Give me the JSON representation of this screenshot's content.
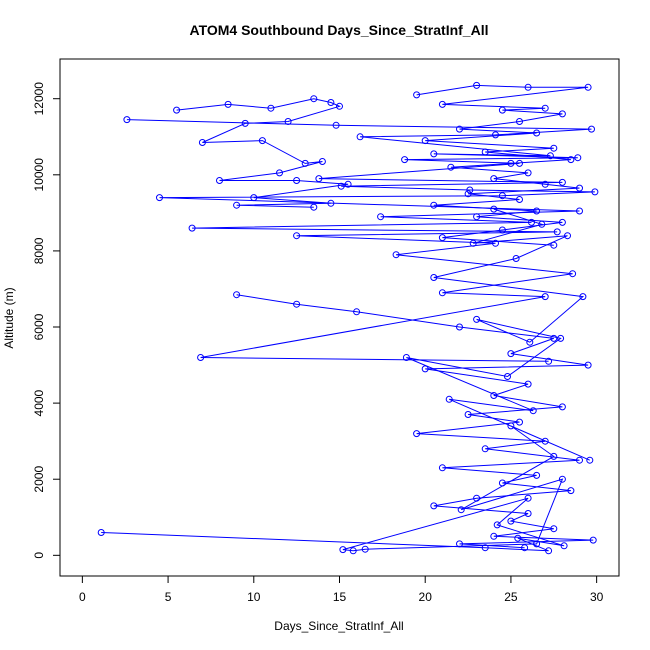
{
  "chart_data": {
    "type": "scatter",
    "title": "ATOM4 Southbound Days_Since_StratInf_All",
    "xlabel": "Days_Since_StratInf_All",
    "ylabel": "Altitude (m)",
    "xlim": [
      0,
      30
    ],
    "ylim": [
      0,
      12500
    ],
    "xticks": [
      "0",
      "5",
      "10",
      "15",
      "20",
      "25",
      "30"
    ],
    "yticks": [
      "0",
      "2000",
      "4000",
      "6000",
      "8000",
      "10000",
      "12000"
    ],
    "grid": false,
    "color": "#0000ff",
    "marker": "open-circle",
    "connected": true,
    "series": [
      {
        "x": [
          1.1,
          23.5,
          27.2,
          25.4,
          28.1,
          24.2,
          26.0,
          15.2,
          15.8,
          16.5,
          26.5,
          28.0,
          22.1,
          27.5,
          25.0,
          29.6,
          21.4,
          26.3,
          18.9,
          24.8,
          27.9,
          23.0,
          26.1,
          29.2,
          20.5,
          25.3,
          28.3,
          22.8,
          26.8,
          24.0
        ],
        "y": [
          600,
          200,
          120,
          450,
          250,
          800,
          1500,
          150,
          120,
          160,
          300,
          2000,
          1200,
          2600,
          3400,
          2500,
          4100,
          3800,
          5200,
          4700,
          5700,
          6200,
          5600,
          6800,
          7300,
          7800,
          8400,
          8200,
          8700,
          9100
        ]
      },
      {
        "x": [
          2.6,
          14.8,
          29.7,
          24.1,
          16.2,
          27.3,
          20.5,
          28.9,
          18.8,
          25.5,
          13.8,
          28.0,
          15.1,
          22.6,
          29.9,
          24.5,
          4.5,
          29.0,
          17.4,
          26.2,
          6.4,
          27.7,
          12.5,
          24.1,
          18.3,
          28.6,
          21.0,
          27.0,
          6.9,
          27.2
        ],
        "y": [
          11450,
          11300,
          11200,
          11050,
          11000,
          10500,
          10550,
          10450,
          10400,
          10300,
          9900,
          9800,
          9700,
          9600,
          9550,
          9450,
          9400,
          9050,
          8900,
          8750,
          8600,
          8500,
          8400,
          8200,
          7900,
          7400,
          6900,
          6800,
          5200,
          5100
        ]
      },
      {
        "x": [
          9.0,
          12.5,
          16.0,
          22.0,
          27.5,
          25.0,
          29.5,
          20.0,
          26.0,
          24.0,
          28.0,
          22.5,
          25.5,
          19.5,
          27.0,
          23.5,
          29.0,
          21.0,
          26.5,
          24.5,
          28.5,
          23.0,
          20.5,
          26.0,
          25.0,
          27.5,
          24.0,
          29.8,
          22.0,
          25.8
        ],
        "y": [
          6850,
          6600,
          6400,
          6000,
          5700,
          5300,
          5000,
          4900,
          4500,
          4200,
          3900,
          3700,
          3500,
          3200,
          3000,
          2800,
          2500,
          2300,
          2100,
          1900,
          1700,
          1500,
          1300,
          1100,
          900,
          700,
          500,
          400,
          300,
          200
        ]
      },
      {
        "x": [
          19.5,
          23.0,
          26.0,
          29.5,
          21.0,
          27.0,
          24.5,
          28.0,
          25.5,
          22.0,
          26.5,
          20.0,
          27.5,
          23.5,
          28.5,
          25.0,
          21.5,
          26.0,
          24.0,
          27.0,
          29.0,
          22.5,
          25.5,
          20.5,
          26.5,
          23.0,
          28.0,
          24.5,
          21.0,
          27.5
        ],
        "y": [
          12100,
          12350,
          12300,
          12300,
          11850,
          11750,
          11700,
          11600,
          11400,
          11200,
          11100,
          10900,
          10700,
          10600,
          10400,
          10300,
          10200,
          10050,
          9900,
          9750,
          9650,
          9500,
          9350,
          9200,
          9050,
          8900,
          8750,
          8550,
          8350,
          8150
        ]
      },
      {
        "x": [
          5.5,
          8.5,
          11.0,
          13.5,
          14.5,
          15.0,
          12.0,
          9.5,
          7.0,
          10.5,
          13.0,
          14.0,
          11.5,
          8.0,
          12.5,
          15.5,
          10.0,
          14.5,
          9.0,
          13.5
        ],
        "y": [
          11700,
          11850,
          11750,
          12000,
          11900,
          11800,
          11400,
          11350,
          10850,
          10900,
          10300,
          10350,
          10050,
          9850,
          9850,
          9750,
          9400,
          9250,
          9200,
          9150
        ]
      }
    ]
  }
}
